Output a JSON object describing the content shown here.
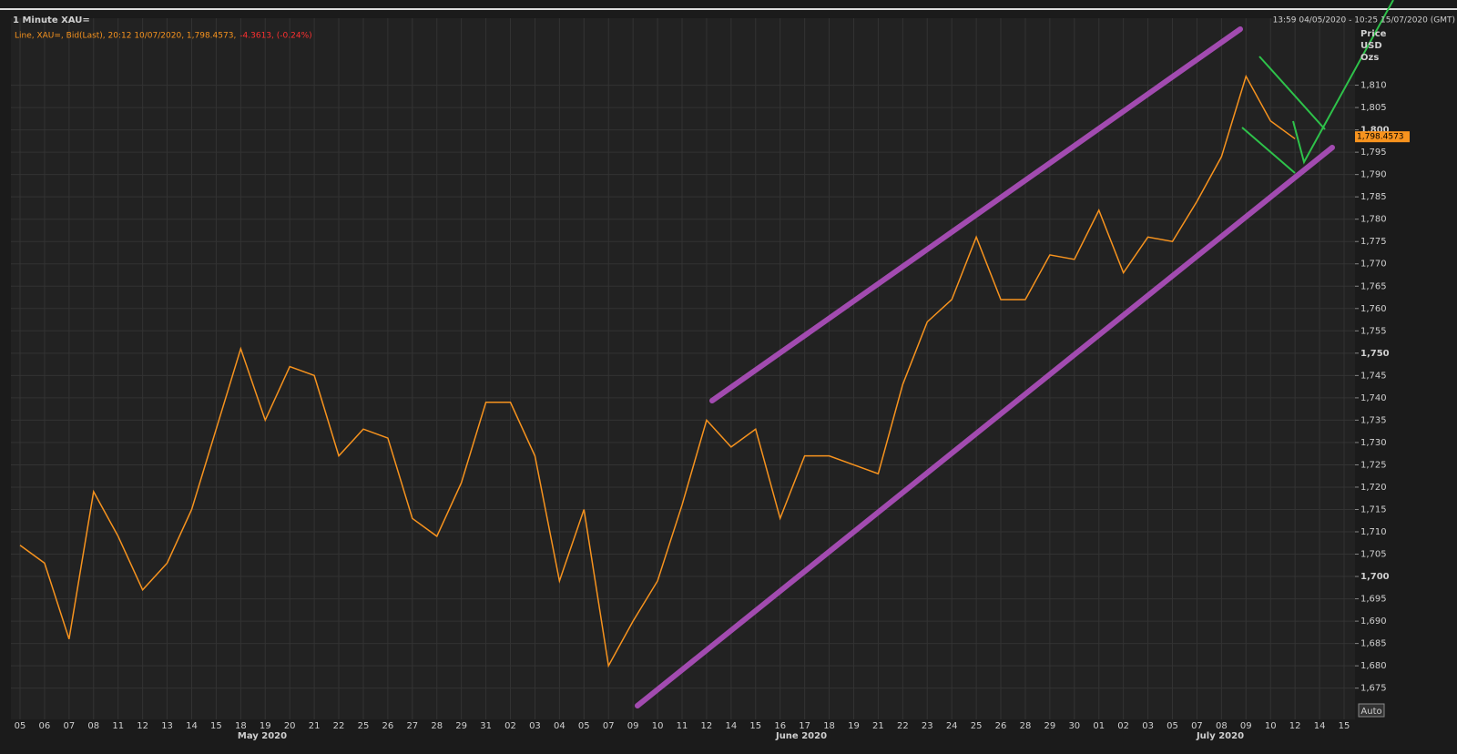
{
  "chart_data": {
    "type": "line",
    "title": "1 Minute XAU=",
    "legend_text": "Line, XAU=, Bid(Last), 20:12 10/07/2020, 1,798.4573,",
    "change_text": "-4.3613, (-0.24%)",
    "range_text": "13:59 04/05/2020 - 10:25 15/07/2020 (GMT)",
    "y_axis_label": [
      "Price",
      "USD",
      "Ozs"
    ],
    "auto_button": "Auto",
    "month_labels": [
      "May 2020",
      "June 2020",
      "July 2020"
    ],
    "last_price": {
      "value": 1798.4573,
      "label": "1,798.4573"
    },
    "categories": [
      "05",
      "06",
      "07",
      "08",
      "11",
      "12",
      "13",
      "14",
      "15",
      "18",
      "19",
      "20",
      "21",
      "22",
      "25",
      "26",
      "27",
      "28",
      "29",
      "31",
      "02",
      "03",
      "04",
      "05",
      "07",
      "09",
      "10",
      "11",
      "12",
      "14",
      "15",
      "16",
      "17",
      "18",
      "19",
      "21",
      "22",
      "23",
      "24",
      "25",
      "26",
      "28",
      "29",
      "30",
      "01",
      "02",
      "03",
      "05",
      "07",
      "08",
      "09",
      "10",
      "12",
      "14",
      "15"
    ],
    "series": [
      {
        "name": "XAU=",
        "color": "#f7931e",
        "values": [
          1707,
          1703,
          1686,
          1719,
          1709,
          1697,
          1703,
          1715,
          1733,
          1751,
          1735,
          1747,
          1745,
          1727,
          1733,
          1731,
          1713,
          1709,
          1721,
          1739,
          1739,
          1727,
          1699,
          1715,
          1680,
          1690,
          1699,
          1716,
          1735,
          1729,
          1733,
          1713,
          1727,
          1727,
          1725,
          1723,
          1743,
          1757,
          1762,
          1776,
          1762,
          1762,
          1772,
          1771,
          1782,
          1768,
          1776,
          1775,
          1784,
          1794,
          1812,
          1802,
          1798,
          null,
          null
        ]
      }
    ],
    "ylim": [
      1668,
      1825
    ],
    "yticks": [
      {
        "value": 1675,
        "label": "1,675"
      },
      {
        "value": 1680,
        "label": "1,680"
      },
      {
        "value": 1685,
        "label": "1,685"
      },
      {
        "value": 1690,
        "label": "1,690"
      },
      {
        "value": 1695,
        "label": "1,695"
      },
      {
        "value": 1700,
        "label": "1,700"
      },
      {
        "value": 1705,
        "label": "1,705"
      },
      {
        "value": 1710,
        "label": "1,710"
      },
      {
        "value": 1715,
        "label": "1,715"
      },
      {
        "value": 1720,
        "label": "1,720"
      },
      {
        "value": 1725,
        "label": "1,725"
      },
      {
        "value": 1730,
        "label": "1,730"
      },
      {
        "value": 1735,
        "label": "1,735"
      },
      {
        "value": 1740,
        "label": "1,740"
      },
      {
        "value": 1745,
        "label": "1,745"
      },
      {
        "value": 1750,
        "label": "1,750"
      },
      {
        "value": 1755,
        "label": "1,755"
      },
      {
        "value": 1760,
        "label": "1,760"
      },
      {
        "value": 1765,
        "label": "1,765"
      },
      {
        "value": 1770,
        "label": "1,770"
      },
      {
        "value": 1775,
        "label": "1,775"
      },
      {
        "value": 1780,
        "label": "1,780"
      },
      {
        "value": 1785,
        "label": "1,785"
      },
      {
        "value": 1790,
        "label": "1,790"
      },
      {
        "value": 1795,
        "label": "1,795"
      },
      {
        "value": 1800,
        "label": "1,800"
      },
      {
        "value": 1805,
        "label": "1,805"
      },
      {
        "value": 1810,
        "label": "1,810"
      }
    ],
    "grid": true
  }
}
